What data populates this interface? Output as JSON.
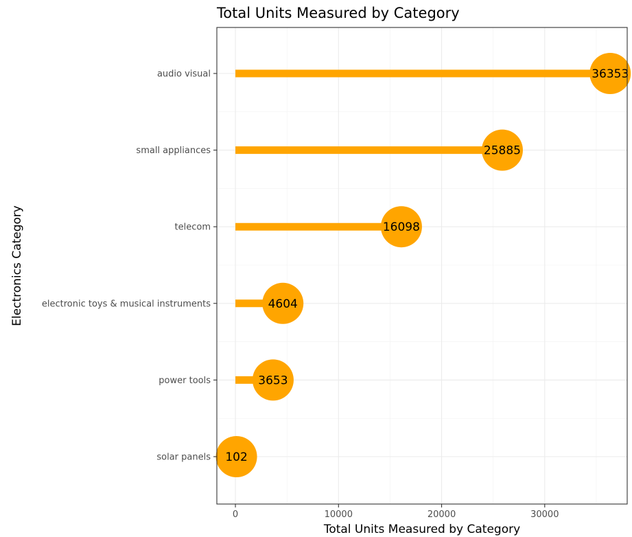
{
  "chart_data": {
    "type": "lollipop",
    "title": "Total Units Measured by Category",
    "xlabel": "Total Units Measured by Category",
    "ylabel": "Electronics Category",
    "xlim": [
      -1800,
      38000
    ],
    "xticks": [
      0,
      10000,
      20000,
      30000
    ],
    "xtick_labels": [
      "0",
      "10000",
      "20000",
      "30000"
    ],
    "grid": true,
    "categories": [
      "audio visual",
      "small appliances",
      "telecom",
      "electronic toys & musical instruments",
      "power tools",
      "solar panels"
    ],
    "values": [
      36353,
      25885,
      16098,
      4604,
      3653,
      102
    ],
    "value_labels": [
      "36353",
      "25885",
      "16098",
      "4604",
      "3653",
      "102"
    ],
    "color": "#FFA500"
  }
}
